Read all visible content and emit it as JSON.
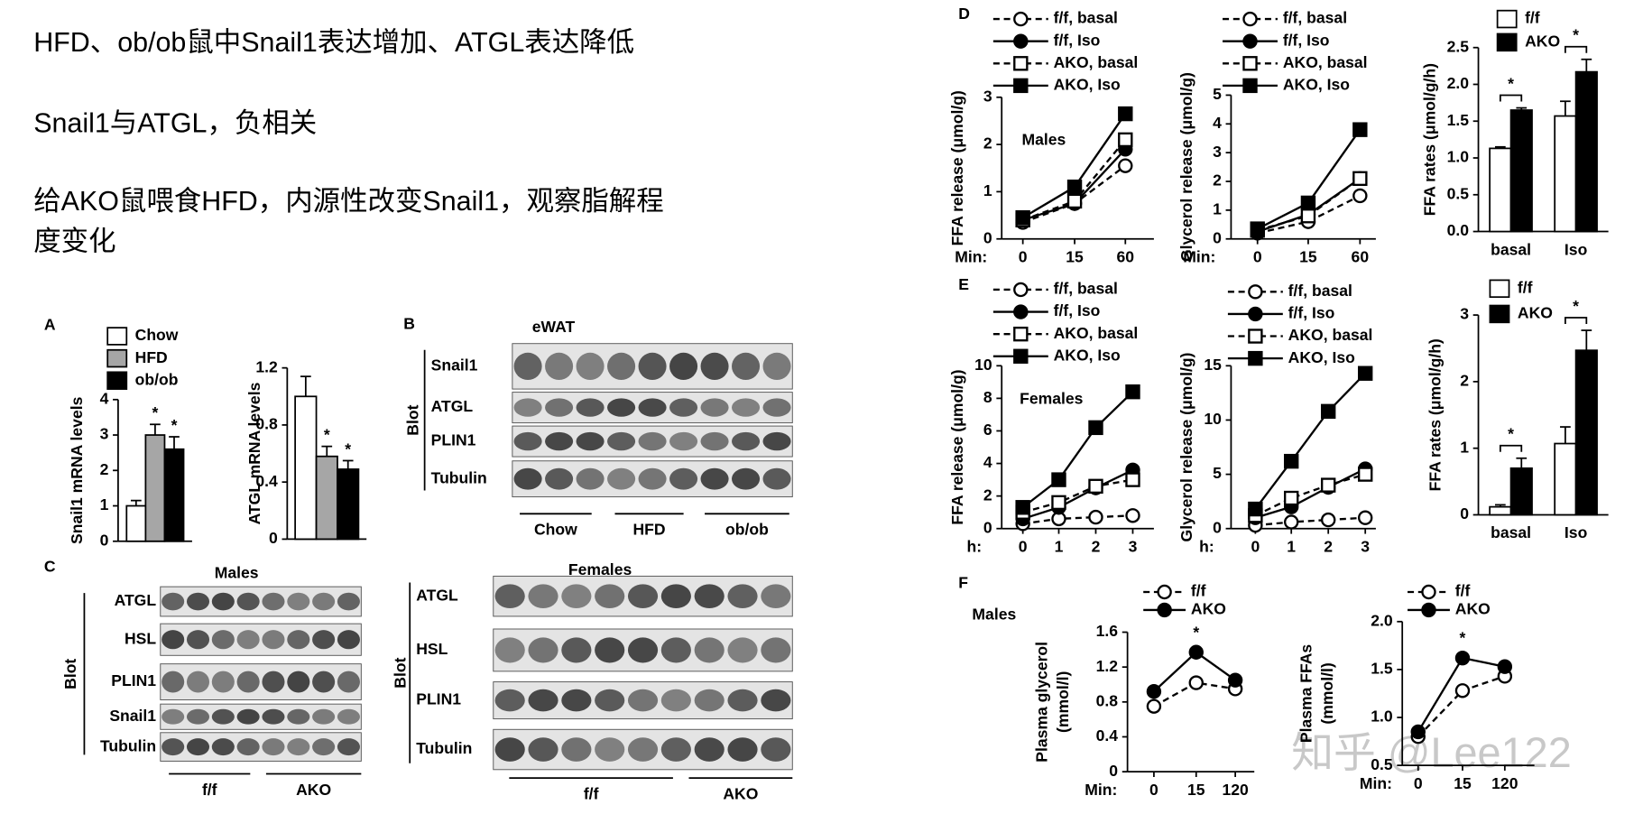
{
  "notes": [
    "HFD、ob/ob鼠中Snail1表达增加、ATGL表达降低",
    "Snail1与ATGL，负相关",
    "给AKO鼠喂食HFD，内源性改变Snail1，观察脂解程",
    "度变化"
  ],
  "panel_labels": [
    "A",
    "B",
    "C",
    "D",
    "E",
    "F"
  ],
  "watermark": "知乎 @Lee122",
  "blots": [
    {
      "title": "eWAT",
      "side_label": "Blot",
      "rows": [
        "Snail1",
        "ATGL",
        "PLIN1",
        "Tubulin"
      ],
      "groups": [
        "Chow",
        "HFD",
        "ob/ob"
      ]
    },
    {
      "title": "Males",
      "side_label": "Blot",
      "rows": [
        "ATGL",
        "HSL",
        "PLIN1",
        "Snail1",
        "Tubulin"
      ],
      "groups": [
        "f/f",
        "AKO"
      ]
    },
    {
      "title": "Females",
      "side_label": "Blot",
      "rows": [
        "ATGL",
        "HSL",
        "PLIN1",
        "Tubulin"
      ],
      "groups": [
        "f/f",
        "AKO"
      ]
    }
  ],
  "chart_data": [
    {
      "type": "bar",
      "y_label": "Snail1 mRNA levels",
      "ylim": [
        0,
        4
      ],
      "yticks": [
        0,
        1,
        2,
        3,
        4
      ],
      "legend": true,
      "series": [
        {
          "name": "Chow",
          "color": "#ffffff",
          "values": [
            1
          ],
          "errors": [
            0.15
          ]
        },
        {
          "name": "HFD",
          "color": "#a6a6a6",
          "values": [
            3
          ],
          "errors": [
            0.3
          ],
          "sig": [
            "*"
          ]
        },
        {
          "name": "ob/ob",
          "color": "#000000",
          "values": [
            2.6
          ],
          "errors": [
            0.35
          ],
          "sig": [
            "*"
          ]
        }
      ]
    },
    {
      "type": "bar",
      "y_label": "ATGL mRNA levels",
      "ylim": [
        0,
        1.2
      ],
      "yticks": [
        0,
        0.4,
        0.8,
        1.2
      ],
      "series": [
        {
          "color": "#ffffff",
          "values": [
            1
          ],
          "errors": [
            0.14
          ]
        },
        {
          "color": "#a6a6a6",
          "values": [
            0.58
          ],
          "errors": [
            0.07
          ],
          "sig": [
            "*"
          ]
        },
        {
          "color": "#000000",
          "values": [
            0.49
          ],
          "errors": [
            0.06
          ],
          "sig": [
            "*"
          ]
        }
      ]
    },
    {
      "type": "line",
      "y_label": "FFA release (μmol/g)",
      "annotation": "Males",
      "x_label": "Min:",
      "categories": [
        "0",
        "15",
        "60"
      ],
      "ylim": [
        0,
        3
      ],
      "yticks": [
        0,
        1,
        2,
        3
      ],
      "series": [
        {
          "name": "f/f, basal",
          "color": "#000000",
          "marker": "circle",
          "filled": false,
          "dashed": true,
          "values": [
            0.35,
            0.75,
            1.55
          ]
        },
        {
          "name": "f/f, Iso",
          "color": "#000000",
          "marker": "circle",
          "filled": true,
          "dashed": false,
          "values": [
            0.4,
            0.75,
            1.9
          ]
        },
        {
          "name": "AKO, basal",
          "color": "#000000",
          "marker": "square",
          "filled": false,
          "dashed": true,
          "values": [
            0.4,
            0.8,
            2.1
          ]
        },
        {
          "name": "AKO, Iso",
          "color": "#000000",
          "marker": "square",
          "filled": true,
          "dashed": false,
          "values": [
            0.45,
            1.1,
            2.65
          ]
        }
      ]
    },
    {
      "type": "line",
      "y_label": "Glycerol release (μmol/g)",
      "x_label": "Min:",
      "categories": [
        "0",
        "15",
        "60"
      ],
      "ylim": [
        0,
        5
      ],
      "yticks": [
        0,
        1,
        2,
        3,
        4,
        5
      ],
      "series": [
        {
          "name": "f/f, basal",
          "color": "#000000",
          "marker": "circle",
          "filled": false,
          "dashed": true,
          "values": [
            0.2,
            0.6,
            1.5
          ]
        },
        {
          "name": "f/f, Iso",
          "color": "#000000",
          "marker": "circle",
          "filled": true,
          "dashed": false,
          "values": [
            0.25,
            0.85,
            2.1
          ]
        },
        {
          "name": "AKO, basal",
          "color": "#000000",
          "marker": "square",
          "filled": false,
          "dashed": true,
          "values": [
            0.3,
            0.8,
            2.1
          ]
        },
        {
          "name": "AKO, Iso",
          "color": "#000000",
          "marker": "square",
          "filled": true,
          "dashed": false,
          "values": [
            0.35,
            1.25,
            3.8
          ]
        }
      ]
    },
    {
      "type": "bar",
      "y_label": "FFA rates  (μmol/g/h)",
      "categories": [
        "basal",
        "Iso"
      ],
      "ylim": [
        0,
        2.5
      ],
      "legend": true,
      "yticks": [
        {
          "value": 0,
          "label": "0.0"
        },
        0.5,
        {
          "value": 1,
          "label": "1.0"
        },
        1.5,
        {
          "value": 2,
          "label": "2.0"
        },
        2.5
      ],
      "series": [
        {
          "name": "f/f",
          "color": "#ffffff",
          "values": [
            1.13,
            1.57
          ],
          "errors": [
            0.02,
            0.2
          ]
        },
        {
          "name": "AKO",
          "color": "#000000",
          "values": [
            1.65,
            2.17
          ],
          "errors": [
            0.03,
            0.17
          ]
        }
      ],
      "category_sig": [
        "*",
        "*"
      ]
    },
    {
      "type": "line",
      "y_label": "FFA release (μmol/g)",
      "annotation": "Females",
      "x_label": "h:",
      "categories": [
        "0",
        "1",
        "2",
        "3"
      ],
      "ylim": [
        0,
        10
      ],
      "yticks": [
        0,
        2,
        4,
        6,
        8,
        10
      ],
      "series": [
        {
          "name": "f/f, basal",
          "color": "#000000",
          "marker": "circle",
          "filled": false,
          "dashed": true,
          "values": [
            0.3,
            0.6,
            0.7,
            0.8
          ]
        },
        {
          "name": "f/f, Iso",
          "color": "#000000",
          "marker": "circle",
          "filled": true,
          "dashed": false,
          "values": [
            0.6,
            1.3,
            2.5,
            3.6
          ]
        },
        {
          "name": "AKO, basal",
          "color": "#000000",
          "marker": "square",
          "filled": false,
          "dashed": true,
          "values": [
            1.0,
            1.6,
            2.6,
            3.0
          ]
        },
        {
          "name": "AKO, Iso",
          "color": "#000000",
          "marker": "square",
          "filled": true,
          "dashed": false,
          "values": [
            1.3,
            3.0,
            6.2,
            8.4
          ]
        }
      ]
    },
    {
      "type": "line",
      "y_label": "Glycerol release (μmol/g)",
      "x_label": "h:",
      "categories": [
        "0",
        "1",
        "2",
        "3"
      ],
      "ylim": [
        0,
        15
      ],
      "yticks": [
        0,
        5,
        10,
        15
      ],
      "series": [
        {
          "name": "f/f, basal",
          "color": "#000000",
          "marker": "circle",
          "filled": false,
          "dashed": true,
          "values": [
            0.3,
            0.6,
            0.8,
            1.0
          ]
        },
        {
          "name": "f/f, Iso",
          "color": "#000000",
          "marker": "circle",
          "filled": true,
          "dashed": false,
          "values": [
            1.0,
            2.0,
            3.8,
            5.5
          ]
        },
        {
          "name": "AKO, basal",
          "color": "#000000",
          "marker": "square",
          "filled": false,
          "dashed": true,
          "values": [
            1.2,
            2.8,
            4.0,
            5.0
          ]
        },
        {
          "name": "AKO, Iso",
          "color": "#000000",
          "marker": "square",
          "filled": true,
          "dashed": false,
          "values": [
            1.8,
            6.2,
            10.8,
            14.3
          ]
        }
      ]
    },
    {
      "type": "bar",
      "y_label": "FFA rates  (μmol/g/h)",
      "categories": [
        "basal",
        "Iso"
      ],
      "ylim": [
        0,
        3
      ],
      "yticks": [
        0,
        1,
        2,
        3
      ],
      "legend": true,
      "series": [
        {
          "name": "f/f",
          "color": "#ffffff",
          "values": [
            0.12,
            1.07
          ],
          "errors": [
            0.03,
            0.25
          ]
        },
        {
          "name": "AKO",
          "color": "#000000",
          "values": [
            0.7,
            2.47
          ],
          "errors": [
            0.15,
            0.3
          ]
        }
      ],
      "category_sig": [
        "*",
        "*"
      ]
    },
    {
      "type": "line",
      "y_label": [
        "Plasma glycerol",
        "(mmol/l)"
      ],
      "annotation": "Males",
      "x_label": "Min:",
      "categories": [
        "0",
        "15",
        "120"
      ],
      "ylim": [
        0,
        1.6
      ],
      "yticks": [
        0,
        0.4,
        0.8,
        1.2,
        1.6
      ],
      "series": [
        {
          "name": "f/f",
          "color": "#000000",
          "marker": "circle",
          "filled": false,
          "dashed": true,
          "values": [
            0.75,
            1.02,
            0.95
          ]
        },
        {
          "name": "AKO",
          "color": "#000000",
          "marker": "circle",
          "filled": true,
          "dashed": false,
          "values": [
            0.92,
            1.37,
            1.05
          ],
          "sig": [
            null,
            "*",
            null
          ]
        }
      ]
    },
    {
      "type": "line",
      "y_label": [
        "Plasma FFAs",
        "(mmol/l)"
      ],
      "x_label": "Min:",
      "categories": [
        "0",
        "15",
        "120"
      ],
      "ylim": [
        0.5,
        2.0
      ],
      "yticks": [
        0.5,
        {
          "value": 1,
          "label": "1.0"
        },
        1.5,
        {
          "value": 2,
          "label": "2.0"
        }
      ],
      "series": [
        {
          "name": "f/f",
          "color": "#000000",
          "marker": "circle",
          "filled": false,
          "dashed": true,
          "values": [
            0.8,
            1.28,
            1.43
          ]
        },
        {
          "name": "AKO",
          "color": "#000000",
          "marker": "circle",
          "filled": true,
          "dashed": false,
          "values": [
            0.85,
            1.62,
            1.53
          ],
          "sig": [
            null,
            "*",
            null
          ]
        }
      ]
    }
  ]
}
